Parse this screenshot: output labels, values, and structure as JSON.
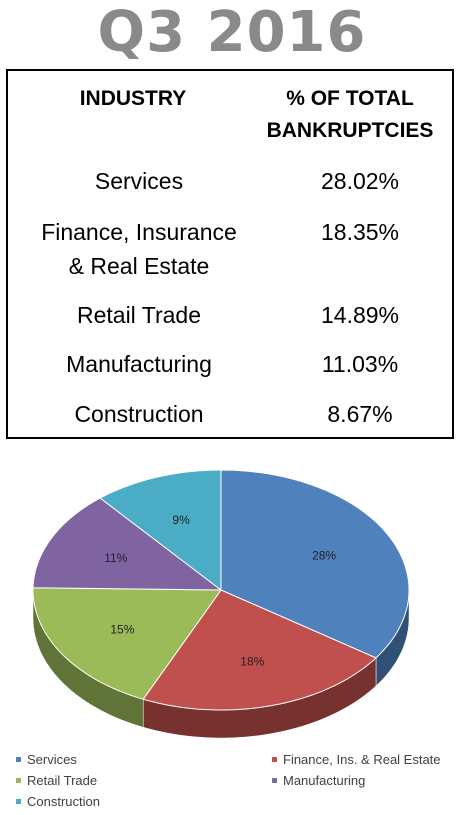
{
  "title": "Q3 2016",
  "table": {
    "headers": {
      "industry": "INDUSTRY",
      "pct_line1": "% OF TOTAL",
      "pct_line2": "BANKRUPTCIES"
    },
    "rows": [
      {
        "industry_lines": [
          "Services"
        ],
        "pct": "28.02%"
      },
      {
        "industry_lines": [
          "Finance, Insurance",
          "& Real Estate"
        ],
        "pct": "18.35%"
      },
      {
        "industry_lines": [
          "Retail Trade"
        ],
        "pct": "14.89%"
      },
      {
        "industry_lines": [
          "Manufacturing"
        ],
        "pct": "11.03%"
      },
      {
        "industry_lines": [
          "Construction"
        ],
        "pct": "8.67%"
      }
    ]
  },
  "chart_data": {
    "type": "pie",
    "title": "",
    "slices": [
      {
        "name": "Services",
        "value": 28,
        "label": "28%",
        "color": "#4f81bd"
      },
      {
        "name": "Finance, Ins. & Real Estate",
        "value": 18,
        "label": "18%",
        "color": "#c0504d"
      },
      {
        "name": "Retail Trade",
        "value": 15,
        "label": "15%",
        "color": "#9bbb59"
      },
      {
        "name": "Manufacturing",
        "value": 11,
        "label": "11%",
        "color": "#8064a2"
      },
      {
        "name": "Construction",
        "value": 9,
        "label": "9%",
        "color": "#4bacc6"
      }
    ],
    "legend_position": "bottom"
  }
}
